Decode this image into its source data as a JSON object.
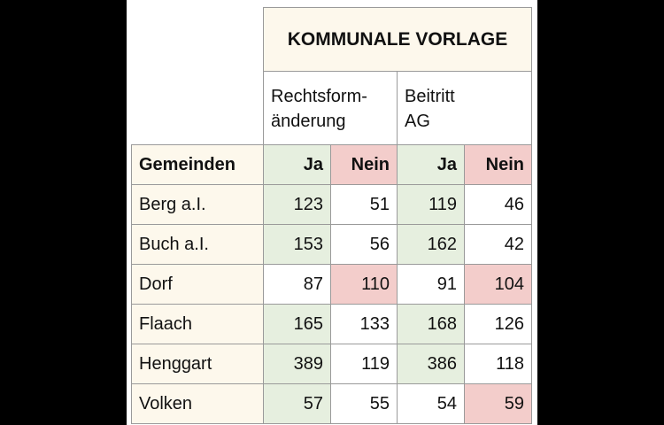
{
  "table": {
    "title": "KOMMUNALE VORLAGE",
    "groups": [
      "Rechtsform-\nänderung",
      "Beitritt\nAG"
    ],
    "header": [
      "Gemeinden",
      "Ja",
      "Nein",
      "Ja",
      "Nein"
    ],
    "rows": [
      [
        "Berg a.I.",
        123,
        51,
        119,
        46
      ],
      [
        "Buch a.I.",
        153,
        56,
        162,
        42
      ],
      [
        "Dorf",
        87,
        110,
        91,
        104
      ],
      [
        "Flaach",
        165,
        133,
        168,
        126
      ],
      [
        "Henggart",
        389,
        119,
        386,
        118
      ],
      [
        "Volken",
        57,
        55,
        54,
        59
      ]
    ]
  }
}
